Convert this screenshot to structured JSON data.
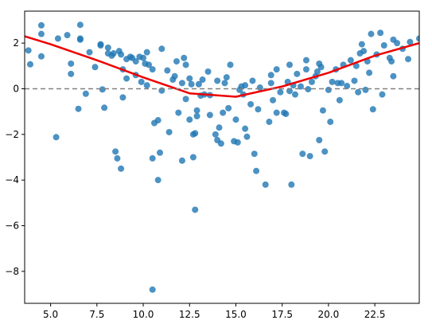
{
  "chart_data": {
    "type": "scatter",
    "title": "",
    "xlabel": "",
    "ylabel": "",
    "xlim": [
      3.6,
      24.9
    ],
    "ylim": [
      -9.4,
      3.4
    ],
    "grid": false,
    "legend": "none",
    "colors": {
      "points": "#1f77b4",
      "trend": "#ee0000",
      "reference": "#808080"
    },
    "x_ticks": [
      {
        "value": 5.0,
        "label": "5.0"
      },
      {
        "value": 7.5,
        "label": "7.5"
      },
      {
        "value": 10.0,
        "label": "10.0"
      },
      {
        "value": 12.5,
        "label": "12.5"
      },
      {
        "value": 15.0,
        "label": "15.0"
      },
      {
        "value": 17.5,
        "label": "17.5"
      },
      {
        "value": 20.0,
        "label": "20.0"
      },
      {
        "value": 22.5,
        "label": "22.5"
      }
    ],
    "y_ticks": [
      {
        "value": 2,
        "label": "2"
      },
      {
        "value": 0,
        "label": "0"
      },
      {
        "value": -2,
        "label": "−2"
      },
      {
        "value": -4,
        "label": "−4"
      },
      {
        "value": -6,
        "label": "−6"
      },
      {
        "value": -8,
        "label": "−8"
      }
    ],
    "reference_line": {
      "y": 0,
      "style": "dashed"
    },
    "trend": {
      "x": [
        3.6,
        5,
        7.5,
        10,
        12.5,
        15,
        17.5,
        20,
        22.5,
        24.9
      ],
      "y": [
        2.3,
        1.95,
        1.25,
        0.5,
        -0.2,
        -0.35,
        0.1,
        0.7,
        1.45,
        2.0
      ]
    },
    "points": [
      [
        3.8,
        1.68
      ],
      [
        3.9,
        1.07
      ],
      [
        4.5,
        2.78
      ],
      [
        4.5,
        2.4
      ],
      [
        4.5,
        1.42
      ],
      [
        5.3,
        -2.12
      ],
      [
        5.4,
        2.2
      ],
      [
        5.9,
        2.35
      ],
      [
        6.1,
        0.65
      ],
      [
        6.1,
        1.1
      ],
      [
        6.5,
        -0.88
      ],
      [
        6.6,
        2.15
      ],
      [
        6.6,
        2.8
      ],
      [
        6.6,
        2.2
      ],
      [
        6.9,
        -0.22
      ],
      [
        7.1,
        1.6
      ],
      [
        7.4,
        0.95
      ],
      [
        7.7,
        1.9
      ],
      [
        7.7,
        1.95
      ],
      [
        7.8,
        -0.03
      ],
      [
        7.9,
        -0.83
      ],
      [
        8.1,
        1.8
      ],
      [
        8.1,
        1.55
      ],
      [
        8.3,
        1.45
      ],
      [
        8.4,
        1.55
      ],
      [
        8.5,
        -2.75
      ],
      [
        8.6,
        -3.05
      ],
      [
        8.7,
        1.65
      ],
      [
        8.8,
        1.5
      ],
      [
        8.9,
        0.85
      ],
      [
        8.8,
        -3.5
      ],
      [
        8.9,
        -0.38
      ],
      [
        9.1,
        0.45
      ],
      [
        9.1,
        1.3
      ],
      [
        9.3,
        1.4
      ],
      [
        9.4,
        1.35
      ],
      [
        9.6,
        1.2
      ],
      [
        9.6,
        0.6
      ],
      [
        9.8,
        1.4
      ],
      [
        9.9,
        0.3
      ],
      [
        10.0,
        1.35
      ],
      [
        10.1,
        1.1
      ],
      [
        10.2,
        0.15
      ],
      [
        10.2,
        1.6
      ],
      [
        10.3,
        1.05
      ],
      [
        10.5,
        0.85
      ],
      [
        10.5,
        -3.05
      ],
      [
        10.6,
        -1.5
      ],
      [
        10.8,
        -1.38
      ],
      [
        10.8,
        -4.0
      ],
      [
        10.9,
        -2.8
      ],
      [
        11.0,
        1.75
      ],
      [
        11.0,
        -0.08
      ],
      [
        10.5,
        -8.8
      ],
      [
        11.3,
        0.8
      ],
      [
        11.4,
        -1.9
      ],
      [
        11.6,
        0.4
      ],
      [
        11.7,
        0.55
      ],
      [
        11.8,
        1.2
      ],
      [
        11.9,
        -1.05
      ],
      [
        12.1,
        0.25
      ],
      [
        12.1,
        -3.15
      ],
      [
        12.2,
        1.35
      ],
      [
        12.3,
        1.05
      ],
      [
        12.3,
        -0.45
      ],
      [
        12.5,
        -1.35
      ],
      [
        12.5,
        0.45
      ],
      [
        12.6,
        0.2
      ],
      [
        12.7,
        -2.0
      ],
      [
        12.7,
        -3.0
      ],
      [
        12.8,
        -1.95
      ],
      [
        12.8,
        -5.3
      ],
      [
        12.9,
        -1.2
      ],
      [
        12.9,
        -0.95
      ],
      [
        13.0,
        0.2
      ],
      [
        13.1,
        -0.3
      ],
      [
        13.2,
        0.4
      ],
      [
        13.3,
        -0.25
      ],
      [
        13.5,
        0.75
      ],
      [
        13.6,
        -0.28
      ],
      [
        13.6,
        -1.15
      ],
      [
        13.9,
        -2.0
      ],
      [
        14.0,
        -2.25
      ],
      [
        14.0,
        0.35
      ],
      [
        14.1,
        -1.7
      ],
      [
        14.2,
        -2.4
      ],
      [
        14.3,
        -1.05
      ],
      [
        14.4,
        0.25
      ],
      [
        14.5,
        0.5
      ],
      [
        14.6,
        -0.85
      ],
      [
        14.7,
        1.05
      ],
      [
        14.9,
        -2.3
      ],
      [
        15.0,
        -1.35
      ],
      [
        15.1,
        -2.35
      ],
      [
        15.2,
        -0.05
      ],
      [
        15.3,
        0.1
      ],
      [
        15.4,
        -0.25
      ],
      [
        15.5,
        -1.75
      ],
      [
        15.5,
        0.15
      ],
      [
        15.6,
        -2.1
      ],
      [
        15.8,
        -0.68
      ],
      [
        15.9,
        0.35
      ],
      [
        16.0,
        -2.85
      ],
      [
        16.1,
        -3.6
      ],
      [
        16.2,
        -0.9
      ],
      [
        16.3,
        0.05
      ],
      [
        16.6,
        -4.2
      ],
      [
        16.8,
        -1.45
      ],
      [
        16.9,
        0.25
      ],
      [
        16.9,
        0.6
      ],
      [
        17.0,
        -0.5
      ],
      [
        17.2,
        0.85
      ],
      [
        17.2,
        -1.05
      ],
      [
        17.4,
        -0.15
      ],
      [
        17.6,
        -1.05
      ],
      [
        17.7,
        -1.1
      ],
      [
        17.8,
        0.3
      ],
      [
        17.9,
        1.05
      ],
      [
        17.9,
        -0.1
      ],
      [
        18.0,
        -4.2
      ],
      [
        18.1,
        0.15
      ],
      [
        18.2,
        -0.25
      ],
      [
        18.3,
        0.65
      ],
      [
        18.5,
        0.1
      ],
      [
        18.6,
        -2.85
      ],
      [
        18.8,
        0.85
      ],
      [
        18.8,
        1.25
      ],
      [
        18.9,
        -0.02
      ],
      [
        19.0,
        -2.95
      ],
      [
        19.1,
        0.3
      ],
      [
        19.3,
        0.55
      ],
      [
        19.4,
        0.75
      ],
      [
        19.5,
        -2.25
      ],
      [
        19.5,
        1.1
      ],
      [
        19.6,
        0.95
      ],
      [
        19.7,
        -0.95
      ],
      [
        19.8,
        -2.75
      ],
      [
        20.0,
        -0.05
      ],
      [
        20.1,
        -1.45
      ],
      [
        20.2,
        0.3
      ],
      [
        20.4,
        0.85
      ],
      [
        20.5,
        0.25
      ],
      [
        20.6,
        -0.5
      ],
      [
        20.7,
        0.25
      ],
      [
        20.8,
        1.05
      ],
      [
        21.0,
        0.12
      ],
      [
        21.2,
        1.25
      ],
      [
        21.4,
        0.35
      ],
      [
        21.5,
        1.0
      ],
      [
        21.6,
        -0.15
      ],
      [
        21.7,
        1.55
      ],
      [
        21.8,
        1.95
      ],
      [
        21.9,
        1.65
      ],
      [
        22.0,
        -0.05
      ],
      [
        22.1,
        1.2
      ],
      [
        22.2,
        0.7
      ],
      [
        22.3,
        2.4
      ],
      [
        22.4,
        -0.9
      ],
      [
        22.6,
        1.5
      ],
      [
        22.8,
        2.45
      ],
      [
        22.9,
        -0.25
      ],
      [
        23.0,
        1.9
      ],
      [
        23.3,
        1.35
      ],
      [
        23.4,
        1.2
      ],
      [
        23.5,
        0.55
      ],
      [
        23.5,
        2.15
      ],
      [
        23.7,
        2.0
      ],
      [
        24.0,
        1.75
      ],
      [
        24.3,
        1.3
      ],
      [
        24.4,
        2.05
      ],
      [
        24.9,
        2.2
      ]
    ]
  }
}
